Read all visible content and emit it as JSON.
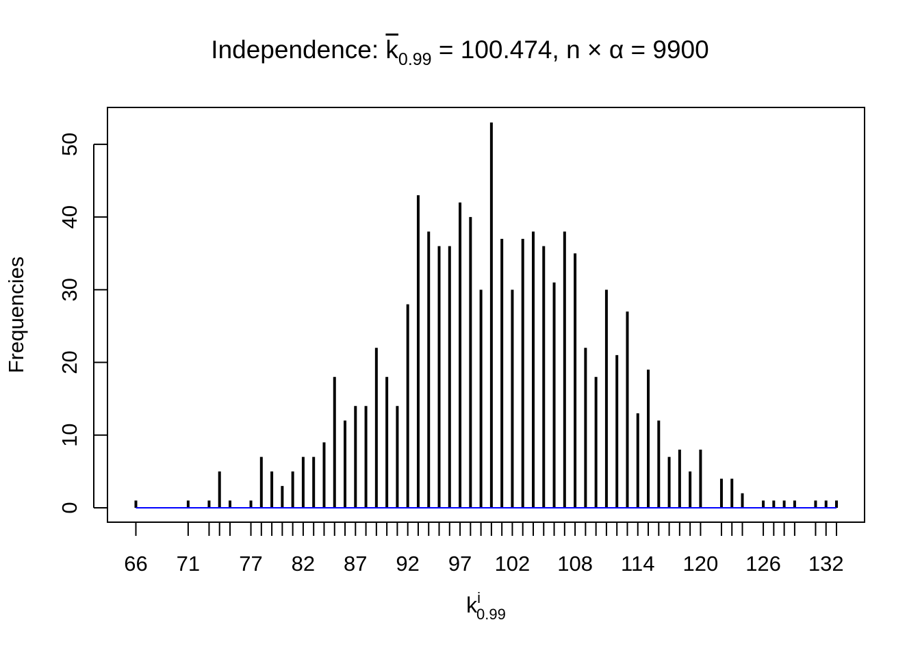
{
  "chart_data": {
    "type": "bar",
    "title": {
      "prefix": "Independence: ",
      "kbar": "k",
      "kbar_sub": "0.99",
      "mid": " = 100.474, n",
      "times": " × ",
      "alpha": "α",
      "suffix": " = 9900"
    },
    "xlabel": {
      "base": "k",
      "sup": "i",
      "sub": "0.99"
    },
    "ylabel": "Frequencies",
    "xlim": [
      66,
      133
    ],
    "ylim": [
      0,
      53
    ],
    "y_ticks": [
      0,
      10,
      20,
      30,
      40,
      50
    ],
    "x_tick_labels": [
      66,
      71,
      77,
      82,
      87,
      92,
      97,
      102,
      108,
      114,
      120,
      126,
      132
    ],
    "x": [
      66,
      71,
      73,
      74,
      75,
      77,
      78,
      79,
      80,
      81,
      82,
      83,
      84,
      85,
      86,
      87,
      88,
      89,
      90,
      91,
      92,
      93,
      94,
      95,
      96,
      97,
      98,
      99,
      100,
      101,
      102,
      103,
      104,
      105,
      106,
      107,
      108,
      109,
      110,
      111,
      112,
      113,
      114,
      115,
      116,
      117,
      118,
      119,
      120,
      122,
      123,
      124,
      126,
      127,
      128,
      129,
      131,
      132,
      133
    ],
    "values": [
      1,
      1,
      1,
      5,
      1,
      1,
      7,
      5,
      3,
      5,
      7,
      7,
      9,
      18,
      12,
      14,
      14,
      22,
      18,
      14,
      28,
      43,
      38,
      36,
      36,
      42,
      40,
      30,
      53,
      37,
      30,
      37,
      38,
      36,
      31,
      38,
      35,
      22,
      18,
      30,
      21,
      27,
      13,
      19,
      12,
      7,
      8,
      5,
      8,
      4,
      4,
      2,
      1,
      1,
      1,
      1,
      1,
      1,
      1
    ],
    "baseline_color": "#0000ff",
    "bar_color": "#000000"
  }
}
